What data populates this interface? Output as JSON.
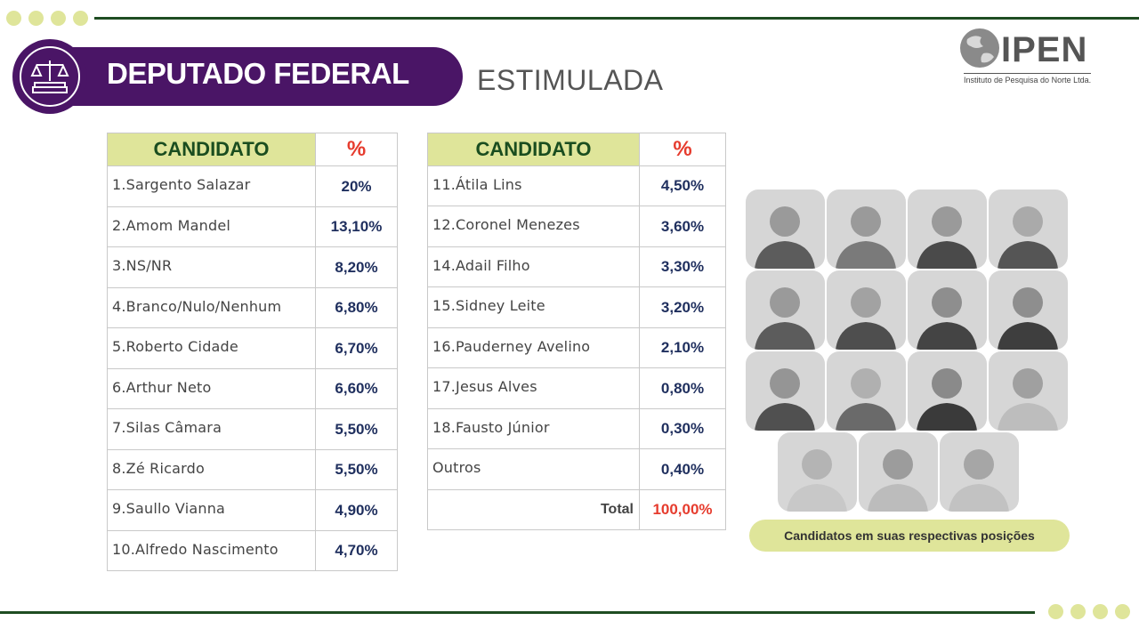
{
  "header": {
    "title": "DEPUTADO FEDERAL",
    "subtitle": "ESTIMULADA",
    "logo_name": "IPEN",
    "logo_tagline": "Instituto de Pesquisa do Norte Ltda."
  },
  "table_left": {
    "col_candidate": "CANDIDATO",
    "col_pct": "%",
    "rows": [
      {
        "name": "1.Sargento Salazar",
        "value": "20%"
      },
      {
        "name": "2.Amom Mandel",
        "value": "13,10%"
      },
      {
        "name": "3.NS/NR",
        "value": "8,20%"
      },
      {
        "name": "4.Branco/Nulo/Nenhum",
        "value": "6,80%"
      },
      {
        "name": "5.Roberto Cidade",
        "value": "6,70%"
      },
      {
        "name": "6.Arthur Neto",
        "value": "6,60%"
      },
      {
        "name": "7.Silas Câmara",
        "value": "5,50%"
      },
      {
        "name": "8.Zé Ricardo",
        "value": "5,50%"
      },
      {
        "name": "9.Saullo Vianna",
        "value": "4,90%"
      },
      {
        "name": "10.Alfredo Nascimento",
        "value": "4,70%"
      }
    ]
  },
  "table_right": {
    "col_candidate": "CANDIDATO",
    "col_pct": "%",
    "rows": [
      {
        "name": "11.Átila Lins",
        "value": "4,50%"
      },
      {
        "name": "12.Coronel Menezes",
        "value": "3,60%"
      },
      {
        "name": "14.Adail Filho",
        "value": "3,30%"
      },
      {
        "name": "15.Sidney Leite",
        "value": "3,20%"
      },
      {
        "name": "16.Pauderney Avelino",
        "value": "2,10%"
      },
      {
        "name": "17.Jesus Alves",
        "value": "0,80%"
      },
      {
        "name": "18.Fausto Júnior",
        "value": "0,30%"
      },
      {
        "name": "Outros",
        "value": "0,40%"
      }
    ],
    "total_label": "Total",
    "total_value": "100,00%"
  },
  "photos_caption": "Candidatos em suas respectivas posições",
  "colors": {
    "purple": "#4a1566",
    "lime": "#dfe59a",
    "green": "#1f4d22",
    "red": "#e63c2e",
    "navy": "#1f2f5e"
  }
}
